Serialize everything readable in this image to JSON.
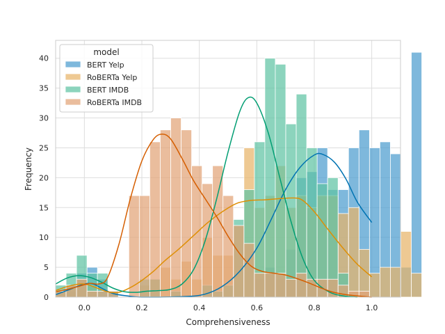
{
  "chart_data": {
    "type": "histogram",
    "xlabel": "Comprehensiveness",
    "ylabel": "Frequency",
    "xlim": [
      -0.1,
      1.1
    ],
    "ylim": [
      0,
      43
    ],
    "xticks": [
      0.0,
      0.2,
      0.4,
      0.6,
      0.8,
      1.0
    ],
    "xtick_labels": [
      "0.0",
      "0.2",
      "0.4",
      "0.6",
      "0.8",
      "1.0"
    ],
    "yticks": [
      0,
      5,
      10,
      15,
      20,
      25,
      30,
      35,
      40
    ],
    "ytick_labels": [
      "0",
      "5",
      "10",
      "15",
      "20",
      "25",
      "30",
      "35",
      "40"
    ],
    "grid": true,
    "bin_start": -0.1,
    "bin_width": 0.0364,
    "legend": {
      "title": "model",
      "position": "top-left"
    },
    "series": [
      {
        "name": "BERT Yelp",
        "color": "#4c9ccf",
        "line_color": "#0173b2",
        "values": [
          0,
          1,
          4,
          5,
          3,
          1,
          0,
          0,
          0,
          0,
          0,
          0,
          0,
          0,
          0,
          0,
          0,
          0,
          0,
          3,
          5,
          3,
          8,
          20,
          21,
          25,
          18,
          18,
          25,
          28,
          25,
          26,
          24,
          5,
          41
        ],
        "kde_points": [
          [
            -0.1,
            0.4
          ],
          [
            -0.05,
            1.3
          ],
          [
            0.0,
            2.2
          ],
          [
            0.03,
            2.2
          ],
          [
            0.06,
            1.5
          ],
          [
            0.1,
            0.6
          ],
          [
            0.15,
            0.2
          ],
          [
            0.2,
            0
          ],
          [
            0.35,
            0.1
          ],
          [
            0.42,
            0.5
          ],
          [
            0.48,
            1.8
          ],
          [
            0.54,
            4.3
          ],
          [
            0.6,
            8.2
          ],
          [
            0.65,
            13
          ],
          [
            0.7,
            18
          ],
          [
            0.75,
            21.7
          ],
          [
            0.8,
            23.8
          ],
          [
            0.83,
            23.9
          ],
          [
            0.87,
            22.6
          ],
          [
            0.91,
            19.8
          ],
          [
            0.95,
            15.9
          ],
          [
            1.0,
            12.5
          ]
        ]
      },
      {
        "name": "RoBERTa Yelp",
        "color": "#e8b46a",
        "line_color": "#de8f05",
        "values": [
          1,
          2,
          3,
          2,
          0,
          0,
          0,
          0,
          2,
          3,
          5,
          3,
          6,
          3,
          10,
          7,
          7,
          12,
          25,
          15,
          17,
          22,
          15,
          17,
          15,
          17,
          17,
          14,
          15,
          8,
          4,
          5,
          5,
          11,
          4
        ],
        "kde_points": [
          [
            -0.1,
            1.1
          ],
          [
            -0.05,
            1.9
          ],
          [
            0.0,
            2.2
          ],
          [
            0.04,
            1.6
          ],
          [
            0.08,
            0.9
          ],
          [
            0.12,
            0.8
          ],
          [
            0.16,
            1.6
          ],
          [
            0.2,
            2.8
          ],
          [
            0.24,
            4.3
          ],
          [
            0.28,
            6.1
          ],
          [
            0.33,
            8.1
          ],
          [
            0.38,
            10.3
          ],
          [
            0.43,
            12.5
          ],
          [
            0.48,
            14.3
          ],
          [
            0.53,
            15.7
          ],
          [
            0.58,
            16.2
          ],
          [
            0.63,
            16.3
          ],
          [
            0.68,
            16.5
          ],
          [
            0.73,
            16.6
          ],
          [
            0.76,
            16.2
          ],
          [
            0.8,
            14.3
          ],
          [
            0.85,
            11.2
          ],
          [
            0.9,
            8.2
          ],
          [
            0.95,
            5.5
          ],
          [
            1.0,
            3.4
          ]
        ]
      },
      {
        "name": "BERT IMDB",
        "color": "#5fc3a4",
        "line_color": "#029e73",
        "values": [
          2,
          4,
          7,
          4,
          4,
          1,
          0,
          0,
          3,
          3,
          0,
          1,
          0,
          0,
          2,
          1,
          2,
          13,
          18,
          26,
          40,
          39,
          29,
          34,
          25,
          19,
          20,
          4,
          0,
          0,
          0,
          0,
          0,
          0,
          0
        ],
        "kde_points": [
          [
            -0.1,
            2.2
          ],
          [
            -0.06,
            3.2
          ],
          [
            -0.02,
            3.6
          ],
          [
            0.02,
            3.3
          ],
          [
            0.06,
            2.5
          ],
          [
            0.1,
            1.5
          ],
          [
            0.14,
            0.9
          ],
          [
            0.18,
            0.8
          ],
          [
            0.22,
            1.0
          ],
          [
            0.26,
            1.1
          ],
          [
            0.3,
            1.3
          ],
          [
            0.34,
            2.2
          ],
          [
            0.38,
            4.6
          ],
          [
            0.42,
            9.4
          ],
          [
            0.46,
            16.4
          ],
          [
            0.5,
            24.3
          ],
          [
            0.54,
            31.0
          ],
          [
            0.57,
            33.4
          ],
          [
            0.6,
            32.5
          ],
          [
            0.64,
            27.5
          ],
          [
            0.68,
            20.0
          ],
          [
            0.72,
            12.5
          ],
          [
            0.76,
            6.5
          ],
          [
            0.8,
            2.8
          ],
          [
            0.85,
            0.9
          ],
          [
            0.9,
            0.2
          ],
          [
            0.95,
            0
          ]
        ]
      },
      {
        "name": "RoBERTa IMDB",
        "color": "#e2a377",
        "line_color": "#d55e00",
        "values": [
          1,
          2,
          3,
          1,
          1,
          1,
          0,
          17,
          17,
          26,
          28,
          30,
          28,
          22,
          19,
          22,
          17,
          12,
          9,
          4,
          4,
          4,
          3,
          4,
          3,
          3,
          3,
          2,
          1,
          1,
          0,
          0,
          0,
          0,
          0
        ],
        "kde_points": [
          [
            -0.1,
            0.9
          ],
          [
            -0.06,
            1.3
          ],
          [
            -0.02,
            1.8
          ],
          [
            0.02,
            2.3
          ],
          [
            0.05,
            2.2
          ],
          [
            0.08,
            3.2
          ],
          [
            0.12,
            8.8
          ],
          [
            0.16,
            16.5
          ],
          [
            0.2,
            22.8
          ],
          [
            0.24,
            26.4
          ],
          [
            0.27,
            27.3
          ],
          [
            0.3,
            26.5
          ],
          [
            0.34,
            23.2
          ],
          [
            0.38,
            19.5
          ],
          [
            0.42,
            16.5
          ],
          [
            0.46,
            13.5
          ],
          [
            0.5,
            10.2
          ],
          [
            0.54,
            7.3
          ],
          [
            0.58,
            5.2
          ],
          [
            0.62,
            4.3
          ],
          [
            0.66,
            4.0
          ],
          [
            0.7,
            3.7
          ],
          [
            0.74,
            3.1
          ],
          [
            0.78,
            2.4
          ],
          [
            0.82,
            1.6
          ],
          [
            0.86,
            0.9
          ],
          [
            0.9,
            0.5
          ],
          [
            0.95,
            0.2
          ],
          [
            1.0,
            0
          ]
        ]
      }
    ]
  }
}
